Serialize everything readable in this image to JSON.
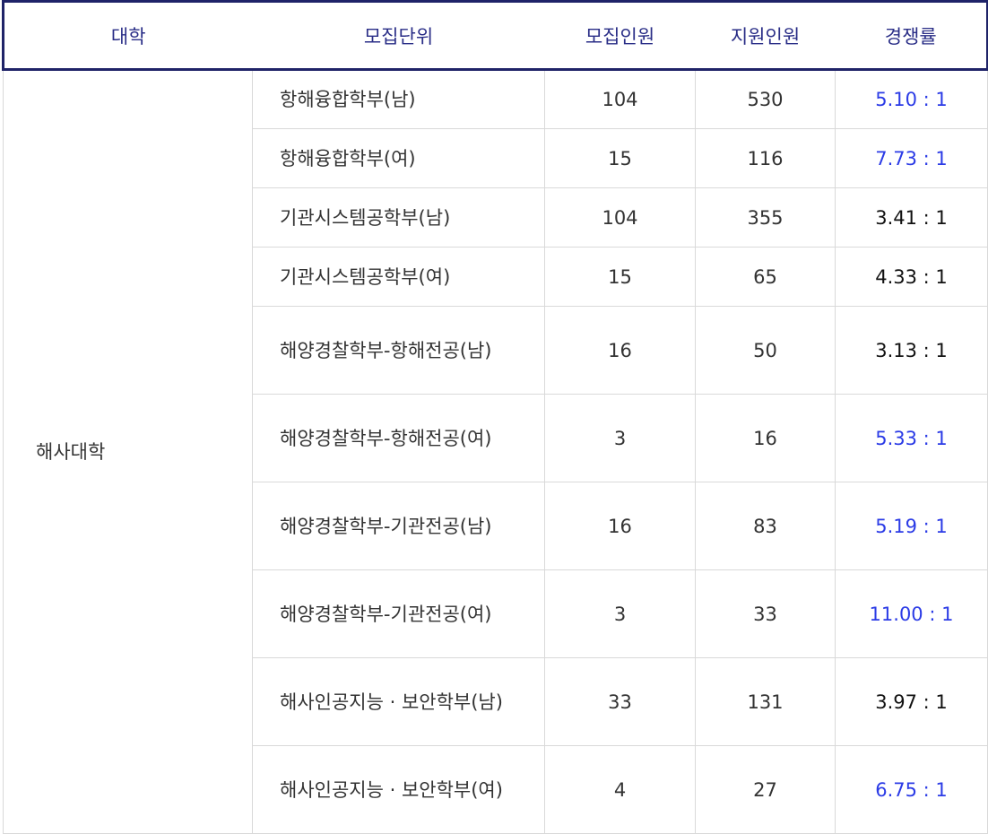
{
  "table": {
    "headers": [
      "대학",
      "모집단위",
      "모집인원",
      "지원인원",
      "경쟁률"
    ],
    "university": "해사대학",
    "rows": [
      {
        "unit": "항해융합학부(남)",
        "quota": "104",
        "applicants": "530",
        "rate": "5.10 : 1",
        "highlight": true
      },
      {
        "unit": "항해융합학부(여)",
        "quota": "15",
        "applicants": "116",
        "rate": "7.73 : 1",
        "highlight": true
      },
      {
        "unit": "기관시스템공학부(남)",
        "quota": "104",
        "applicants": "355",
        "rate": "3.41 : 1",
        "highlight": false
      },
      {
        "unit": "기관시스템공학부(여)",
        "quota": "15",
        "applicants": "65",
        "rate": "4.33 : 1",
        "highlight": false
      },
      {
        "unit": "해양경찰학부-항해전공(남)",
        "quota": "16",
        "applicants": "50",
        "rate": "3.13 : 1",
        "highlight": false
      },
      {
        "unit": "해양경찰학부-항해전공(여)",
        "quota": "3",
        "applicants": "16",
        "rate": "5.33 : 1",
        "highlight": true
      },
      {
        "unit": "해양경찰학부-기관전공(남)",
        "quota": "16",
        "applicants": "83",
        "rate": "5.19 : 1",
        "highlight": true
      },
      {
        "unit": "해양경찰학부-기관전공(여)",
        "quota": "3",
        "applicants": "33",
        "rate": "11.00 : 1",
        "highlight": true
      },
      {
        "unit": "해사인공지능 · 보안학부(남)",
        "quota": "33",
        "applicants": "131",
        "rate": "3.97 : 1",
        "highlight": false
      },
      {
        "unit": "해사인공지능 · 보안학부(여)",
        "quota": "4",
        "applicants": "27",
        "rate": "6.75 : 1",
        "highlight": true
      }
    ]
  },
  "colors": {
    "header_text": "#2a2e87",
    "header_border": "#1f2368",
    "highlight_rate": "#2b3be6",
    "normal_rate": "#111111"
  }
}
